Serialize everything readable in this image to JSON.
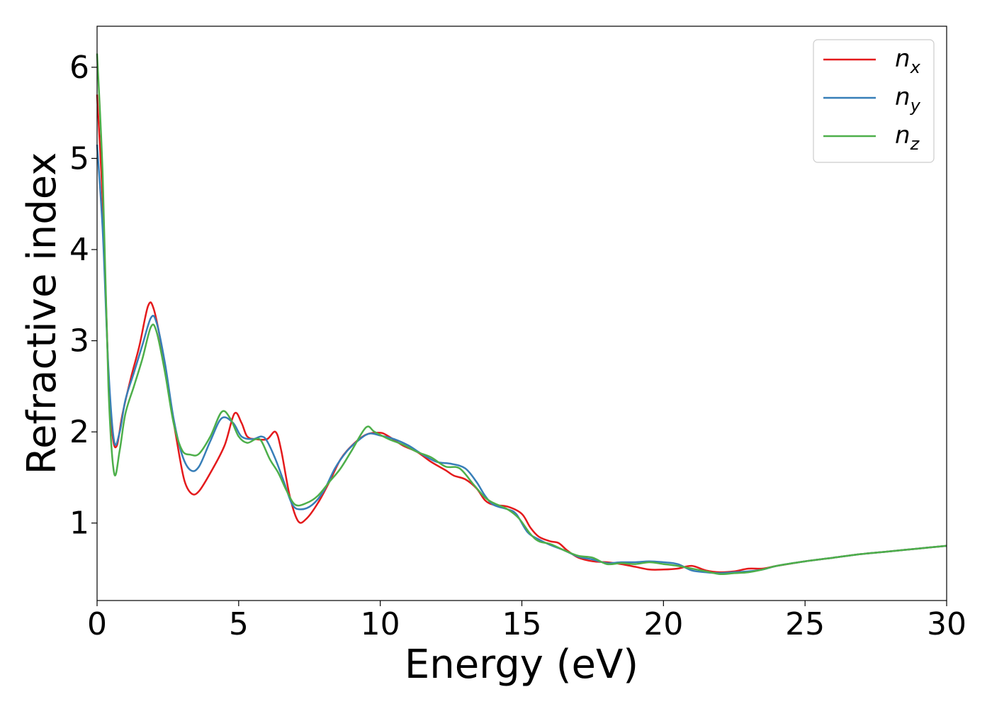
{
  "chart_data": {
    "type": "line",
    "xlabel": "Energy (eV)",
    "ylabel": "Refractive index",
    "xlim": [
      0,
      30
    ],
    "ylim": [
      0.15,
      6.45
    ],
    "xticks": [
      "0",
      "5",
      "10",
      "15",
      "20",
      "25",
      "30"
    ],
    "yticks": [
      "1",
      "2",
      "3",
      "4",
      "5",
      "6"
    ],
    "grid": false,
    "legend_position": "top-right",
    "series": [
      {
        "name": "n",
        "sub": "x",
        "color": "#e41a1c",
        "points": [
          [
            0,
            5.7
          ],
          [
            0.2,
            4.5
          ],
          [
            0.4,
            2.6
          ],
          [
            0.55,
            1.95
          ],
          [
            0.7,
            1.85
          ],
          [
            0.9,
            2.2
          ],
          [
            1.2,
            2.6
          ],
          [
            1.5,
            2.95
          ],
          [
            1.8,
            3.38
          ],
          [
            2.0,
            3.35
          ],
          [
            2.3,
            2.9
          ],
          [
            2.6,
            2.3
          ],
          [
            2.9,
            1.75
          ],
          [
            3.1,
            1.45
          ],
          [
            3.35,
            1.32
          ],
          [
            3.6,
            1.35
          ],
          [
            4.0,
            1.55
          ],
          [
            4.5,
            1.85
          ],
          [
            4.85,
            2.2
          ],
          [
            5.1,
            2.1
          ],
          [
            5.3,
            1.95
          ],
          [
            5.6,
            1.92
          ],
          [
            6.0,
            1.92
          ],
          [
            6.3,
            2.0
          ],
          [
            6.5,
            1.8
          ],
          [
            6.8,
            1.3
          ],
          [
            7.1,
            1.02
          ],
          [
            7.4,
            1.05
          ],
          [
            7.8,
            1.22
          ],
          [
            8.2,
            1.45
          ],
          [
            8.6,
            1.7
          ],
          [
            9.0,
            1.85
          ],
          [
            9.5,
            1.97
          ],
          [
            10.0,
            1.99
          ],
          [
            10.3,
            1.95
          ],
          [
            10.8,
            1.85
          ],
          [
            11.3,
            1.78
          ],
          [
            11.8,
            1.67
          ],
          [
            12.3,
            1.58
          ],
          [
            12.6,
            1.52
          ],
          [
            13.0,
            1.48
          ],
          [
            13.4,
            1.38
          ],
          [
            13.7,
            1.25
          ],
          [
            14.0,
            1.2
          ],
          [
            14.5,
            1.18
          ],
          [
            15.0,
            1.1
          ],
          [
            15.3,
            0.95
          ],
          [
            15.6,
            0.85
          ],
          [
            16.0,
            0.8
          ],
          [
            16.3,
            0.78
          ],
          [
            16.6,
            0.7
          ],
          [
            17.0,
            0.62
          ],
          [
            17.5,
            0.58
          ],
          [
            18.0,
            0.57
          ],
          [
            18.5,
            0.55
          ],
          [
            19.0,
            0.52
          ],
          [
            19.5,
            0.49
          ],
          [
            20.0,
            0.49
          ],
          [
            20.5,
            0.5
          ],
          [
            21.0,
            0.53
          ],
          [
            21.5,
            0.48
          ],
          [
            22.0,
            0.46
          ],
          [
            22.5,
            0.47
          ],
          [
            23.0,
            0.5
          ],
          [
            23.5,
            0.5
          ],
          [
            24.0,
            0.53
          ],
          [
            25.0,
            0.58
          ],
          [
            26.0,
            0.62
          ],
          [
            27.0,
            0.66
          ],
          [
            28.0,
            0.69
          ],
          [
            29.0,
            0.72
          ],
          [
            30.0,
            0.75
          ]
        ]
      },
      {
        "name": "n",
        "sub": "y",
        "color": "#377eb8",
        "points": [
          [
            0,
            5.15
          ],
          [
            0.2,
            4.2
          ],
          [
            0.4,
            2.7
          ],
          [
            0.6,
            1.9
          ],
          [
            0.8,
            2.0
          ],
          [
            1.0,
            2.35
          ],
          [
            1.3,
            2.65
          ],
          [
            1.6,
            2.95
          ],
          [
            1.9,
            3.25
          ],
          [
            2.1,
            3.2
          ],
          [
            2.4,
            2.75
          ],
          [
            2.7,
            2.15
          ],
          [
            3.0,
            1.75
          ],
          [
            3.3,
            1.58
          ],
          [
            3.6,
            1.62
          ],
          [
            4.0,
            1.9
          ],
          [
            4.4,
            2.15
          ],
          [
            4.8,
            2.1
          ],
          [
            5.1,
            1.95
          ],
          [
            5.5,
            1.92
          ],
          [
            5.8,
            1.95
          ],
          [
            6.0,
            1.9
          ],
          [
            6.3,
            1.7
          ],
          [
            6.6,
            1.45
          ],
          [
            6.9,
            1.2
          ],
          [
            7.2,
            1.15
          ],
          [
            7.6,
            1.2
          ],
          [
            8.0,
            1.35
          ],
          [
            8.4,
            1.6
          ],
          [
            8.8,
            1.78
          ],
          [
            9.2,
            1.9
          ],
          [
            9.6,
            1.98
          ],
          [
            10.0,
            1.96
          ],
          [
            10.5,
            1.92
          ],
          [
            11.0,
            1.85
          ],
          [
            11.5,
            1.75
          ],
          [
            12.0,
            1.67
          ],
          [
            12.5,
            1.65
          ],
          [
            13.0,
            1.6
          ],
          [
            13.4,
            1.45
          ],
          [
            13.7,
            1.3
          ],
          [
            14.0,
            1.2
          ],
          [
            14.5,
            1.15
          ],
          [
            14.8,
            1.1
          ],
          [
            15.2,
            0.9
          ],
          [
            15.6,
            0.82
          ],
          [
            16.0,
            0.76
          ],
          [
            16.5,
            0.7
          ],
          [
            17.0,
            0.63
          ],
          [
            17.5,
            0.6
          ],
          [
            18.0,
            0.56
          ],
          [
            18.5,
            0.57
          ],
          [
            19.0,
            0.57
          ],
          [
            19.5,
            0.58
          ],
          [
            20.0,
            0.57
          ],
          [
            20.5,
            0.55
          ],
          [
            21.0,
            0.48
          ],
          [
            21.5,
            0.46
          ],
          [
            22.0,
            0.45
          ],
          [
            22.5,
            0.46
          ],
          [
            23.0,
            0.47
          ],
          [
            23.5,
            0.49
          ],
          [
            24.0,
            0.53
          ],
          [
            25.0,
            0.58
          ],
          [
            26.0,
            0.62
          ],
          [
            27.0,
            0.66
          ],
          [
            28.0,
            0.69
          ],
          [
            29.0,
            0.72
          ],
          [
            30.0,
            0.75
          ]
        ]
      },
      {
        "name": "n",
        "sub": "z",
        "color": "#4daf4a",
        "points": [
          [
            0,
            6.15
          ],
          [
            0.2,
            4.8
          ],
          [
            0.4,
            2.5
          ],
          [
            0.6,
            1.55
          ],
          [
            0.8,
            1.8
          ],
          [
            1.0,
            2.2
          ],
          [
            1.3,
            2.5
          ],
          [
            1.6,
            2.8
          ],
          [
            1.9,
            3.15
          ],
          [
            2.1,
            3.1
          ],
          [
            2.4,
            2.65
          ],
          [
            2.7,
            2.1
          ],
          [
            3.0,
            1.8
          ],
          [
            3.3,
            1.75
          ],
          [
            3.6,
            1.76
          ],
          [
            4.0,
            1.95
          ],
          [
            4.4,
            2.22
          ],
          [
            4.7,
            2.15
          ],
          [
            5.0,
            1.95
          ],
          [
            5.3,
            1.88
          ],
          [
            5.6,
            1.92
          ],
          [
            5.8,
            1.9
          ],
          [
            6.1,
            1.7
          ],
          [
            6.4,
            1.55
          ],
          [
            6.7,
            1.35
          ],
          [
            7.0,
            1.2
          ],
          [
            7.4,
            1.22
          ],
          [
            7.8,
            1.3
          ],
          [
            8.2,
            1.45
          ],
          [
            8.6,
            1.6
          ],
          [
            9.0,
            1.8
          ],
          [
            9.5,
            2.05
          ],
          [
            9.8,
            2.0
          ],
          [
            10.3,
            1.92
          ],
          [
            10.8,
            1.86
          ],
          [
            11.3,
            1.78
          ],
          [
            11.8,
            1.72
          ],
          [
            12.3,
            1.62
          ],
          [
            12.8,
            1.6
          ],
          [
            13.3,
            1.42
          ],
          [
            13.7,
            1.28
          ],
          [
            14.0,
            1.22
          ],
          [
            14.5,
            1.15
          ],
          [
            14.9,
            1.05
          ],
          [
            15.3,
            0.88
          ],
          [
            15.6,
            0.8
          ],
          [
            16.0,
            0.77
          ],
          [
            16.5,
            0.7
          ],
          [
            17.0,
            0.64
          ],
          [
            17.5,
            0.62
          ],
          [
            18.0,
            0.55
          ],
          [
            18.5,
            0.56
          ],
          [
            19.0,
            0.55
          ],
          [
            19.5,
            0.57
          ],
          [
            20.0,
            0.55
          ],
          [
            20.5,
            0.53
          ],
          [
            21.0,
            0.5
          ],
          [
            21.5,
            0.47
          ],
          [
            22.0,
            0.44
          ],
          [
            22.5,
            0.45
          ],
          [
            23.0,
            0.46
          ],
          [
            23.5,
            0.49
          ],
          [
            24.0,
            0.53
          ],
          [
            25.0,
            0.58
          ],
          [
            26.0,
            0.62
          ],
          [
            27.0,
            0.66
          ],
          [
            28.0,
            0.69
          ],
          [
            29.0,
            0.72
          ],
          [
            30.0,
            0.75
          ]
        ]
      }
    ]
  }
}
